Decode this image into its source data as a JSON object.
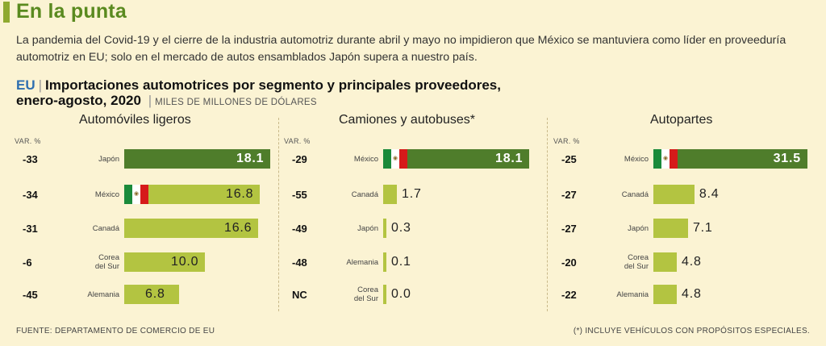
{
  "title": "En la punta",
  "intro": "La pandemia del Covid-19 y el cierre de la industria automotriz durante abril y mayo no impidieron que México se mantuviera como líder en proveeduría automotriz en EU; solo en el mercado de autos ensamblados Japón supera a nuestro país.",
  "header": {
    "tag": "EU",
    "line1": "Importaciones automotrices por segmento y principales proveedores,",
    "line2": "enero-agosto, 2020",
    "units": "MILES DE MILLONES DE DÓLARES"
  },
  "var_header": "VAR. %",
  "colors": {
    "bar": "#b3c441",
    "lead_bar": "#4f7d2b",
    "title": "#5a8a1f",
    "tag": "#2e6fb0",
    "background": "#fbf3d3"
  },
  "chart_data": [
    {
      "type": "bar",
      "title": "Automóviles ligeros",
      "categories": [
        "Japón",
        "México",
        "Canadá",
        "Corea del Sur",
        "Alemania"
      ],
      "values": [
        18.1,
        16.8,
        16.6,
        10.0,
        6.8
      ],
      "labels": [
        "18.1",
        "16.8",
        "16.6",
        "10.0",
        "6.8"
      ],
      "var": [
        "-33",
        "-34",
        "-31",
        "-6",
        "-45"
      ]
    },
    {
      "type": "bar",
      "title": "Camiones y autobuses*",
      "categories": [
        "México",
        "Canadá",
        "Japón",
        "Alemania",
        "Corea del Sur"
      ],
      "values": [
        18.1,
        1.7,
        0.3,
        0.1,
        0.0
      ],
      "labels": [
        "18.1",
        "1.7",
        "0.3",
        "0.1",
        "0.0"
      ],
      "var": [
        "-29",
        "-55",
        "-49",
        "-48",
        "NC"
      ]
    },
    {
      "type": "bar",
      "title": "Autopartes",
      "categories": [
        "México",
        "Canadá",
        "Japón",
        "Corea del Sur",
        "Alemania"
      ],
      "values": [
        31.5,
        8.4,
        7.1,
        4.8,
        4.8
      ],
      "labels": [
        "31.5",
        "8.4",
        "7.1",
        "4.8",
        "4.8"
      ],
      "var": [
        "-25",
        "-27",
        "-27",
        "-20",
        "-22"
      ]
    }
  ],
  "footer": {
    "source": "FUENTE: DEPARTAMENTO DE COMERCIO DE EU",
    "note": "(*) INCLUYE VEHÍCULOS CON PROPÓSITOS ESPECIALES."
  }
}
